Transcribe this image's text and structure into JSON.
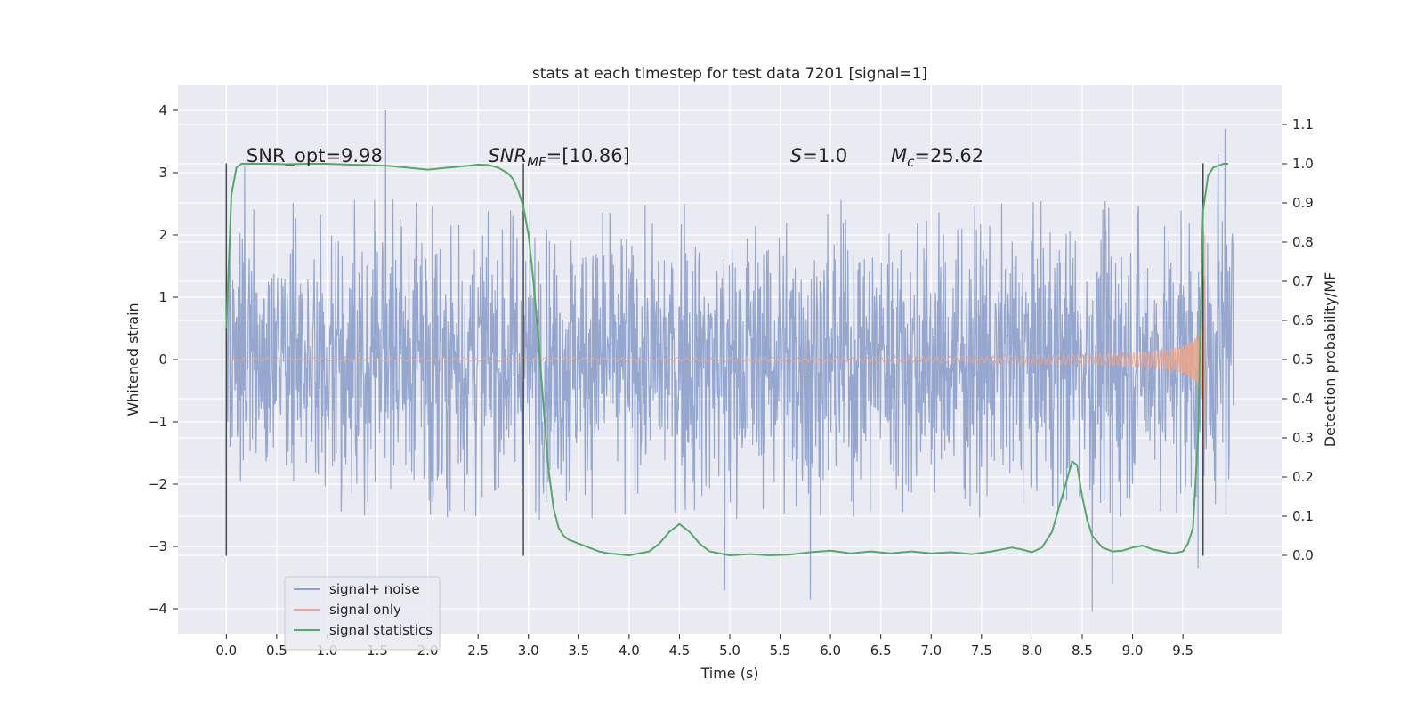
{
  "chart_data": {
    "type": "line",
    "title": "stats at each timestep for test data 7201 [signal=1]",
    "xlabel": "Time (s)",
    "ylabel_left": "Whitened strain",
    "ylabel_right": "Detection probability/MF",
    "xlim": [
      -0.48,
      10.48
    ],
    "ylim_left": [
      -4.4,
      4.4
    ],
    "ylim_right": [
      -0.2,
      1.2
    ],
    "x_ticks": [
      "0.0",
      "0.5",
      "1.0",
      "1.5",
      "2.0",
      "2.5",
      "3.0",
      "3.5",
      "4.0",
      "4.5",
      "5.0",
      "5.5",
      "6.0",
      "6.5",
      "7.0",
      "7.5",
      "8.0",
      "8.5",
      "9.0",
      "9.5"
    ],
    "y_left_ticks": [
      "4",
      "3",
      "2",
      "1",
      "0",
      "−1",
      "−2",
      "−3",
      "−4"
    ],
    "y_right_ticks": [
      "1.1",
      "1.0",
      "0.9",
      "0.8",
      "0.7",
      "0.6",
      "0.5",
      "0.4",
      "0.3",
      "0.2",
      "0.1",
      "0.0"
    ],
    "grid": true,
    "legend_position": "lower-left",
    "annotations": [
      {
        "text": "SNR_opt=9.98",
        "x": 0.2,
        "y_right": 1.0
      },
      {
        "main": "SNR",
        "sub": "MF",
        "rest": "=[10.86]",
        "x": 2.6,
        "y_right": 1.0
      },
      {
        "main": "S",
        "rest": "=1.0",
        "x": 5.6,
        "y_right": 1.0
      },
      {
        "main": "M",
        "sub": "c",
        "rest": "=25.62",
        "x": 6.6,
        "y_right": 1.0
      }
    ],
    "vertical_markers": [
      {
        "x": 0.0,
        "y_left": [
          -3.15,
          3.15
        ]
      },
      {
        "x": 2.95,
        "y_left": [
          -3.15,
          3.15
        ]
      },
      {
        "x": 9.7,
        "y_left": [
          -3.15,
          3.15
        ]
      }
    ],
    "series": [
      {
        "name": "signal+ noise",
        "color": "#8da0cb",
        "axis": "left",
        "kind": "noise",
        "x_range": [
          0.0,
          10.0
        ],
        "typical_envelope": [
          -2.6,
          2.6
        ],
        "notable_peaks": [
          [
            1.58,
            4.0
          ],
          [
            9.92,
            3.7
          ],
          [
            9.85,
            3.3
          ],
          [
            4.95,
            -3.7
          ],
          [
            5.8,
            -3.85
          ],
          [
            8.6,
            -4.05
          ],
          [
            8.8,
            -3.6
          ],
          [
            9.65,
            -3.35
          ],
          [
            0.18,
            3.1
          ]
        ]
      },
      {
        "name": "signal only",
        "color": "#e8a68d",
        "axis": "left",
        "kind": "chirp",
        "x_range": [
          0.0,
          9.72
        ],
        "peak_amplitude": 2.5
      },
      {
        "name": "signal statistics",
        "color": "#55a868",
        "axis": "right",
        "x": [
          0.0,
          0.05,
          0.1,
          0.15,
          0.2,
          0.3,
          0.4,
          0.6,
          0.8,
          1.0,
          1.2,
          1.4,
          1.6,
          1.8,
          2.0,
          2.2,
          2.4,
          2.5,
          2.6,
          2.7,
          2.8,
          2.85,
          2.9,
          2.95,
          3.0,
          3.05,
          3.1,
          3.15,
          3.2,
          3.25,
          3.3,
          3.35,
          3.4,
          3.5,
          3.6,
          3.7,
          3.8,
          4.0,
          4.2,
          4.3,
          4.4,
          4.5,
          4.6,
          4.7,
          4.8,
          5.0,
          5.2,
          5.4,
          5.6,
          5.8,
          6.0,
          6.2,
          6.4,
          6.6,
          6.8,
          7.0,
          7.2,
          7.4,
          7.6,
          7.8,
          7.9,
          8.0,
          8.1,
          8.2,
          8.3,
          8.4,
          8.45,
          8.5,
          8.55,
          8.6,
          8.7,
          8.8,
          8.9,
          9.0,
          9.1,
          9.2,
          9.3,
          9.4,
          9.5,
          9.55,
          9.6,
          9.65,
          9.7,
          9.75,
          9.8,
          9.9,
          9.95
        ],
        "values": [
          0.58,
          0.92,
          0.99,
          1.0,
          1.0,
          1.0,
          1.0,
          0.999,
          1.0,
          1.0,
          0.998,
          0.997,
          0.995,
          0.99,
          0.985,
          0.99,
          0.995,
          0.998,
          0.997,
          0.99,
          0.975,
          0.96,
          0.93,
          0.89,
          0.82,
          0.7,
          0.55,
          0.38,
          0.22,
          0.12,
          0.07,
          0.05,
          0.04,
          0.03,
          0.02,
          0.01,
          0.005,
          0.0,
          0.01,
          0.03,
          0.06,
          0.08,
          0.06,
          0.03,
          0.01,
          0.0,
          0.003,
          0.0,
          0.002,
          0.008,
          0.012,
          0.005,
          0.01,
          0.005,
          0.01,
          0.005,
          0.008,
          0.003,
          0.01,
          0.02,
          0.015,
          0.008,
          0.02,
          0.06,
          0.15,
          0.24,
          0.23,
          0.15,
          0.09,
          0.05,
          0.02,
          0.01,
          0.012,
          0.02,
          0.025,
          0.015,
          0.01,
          0.005,
          0.01,
          0.03,
          0.07,
          0.3,
          0.88,
          0.97,
          0.99,
          1.0,
          1.0
        ]
      }
    ]
  }
}
